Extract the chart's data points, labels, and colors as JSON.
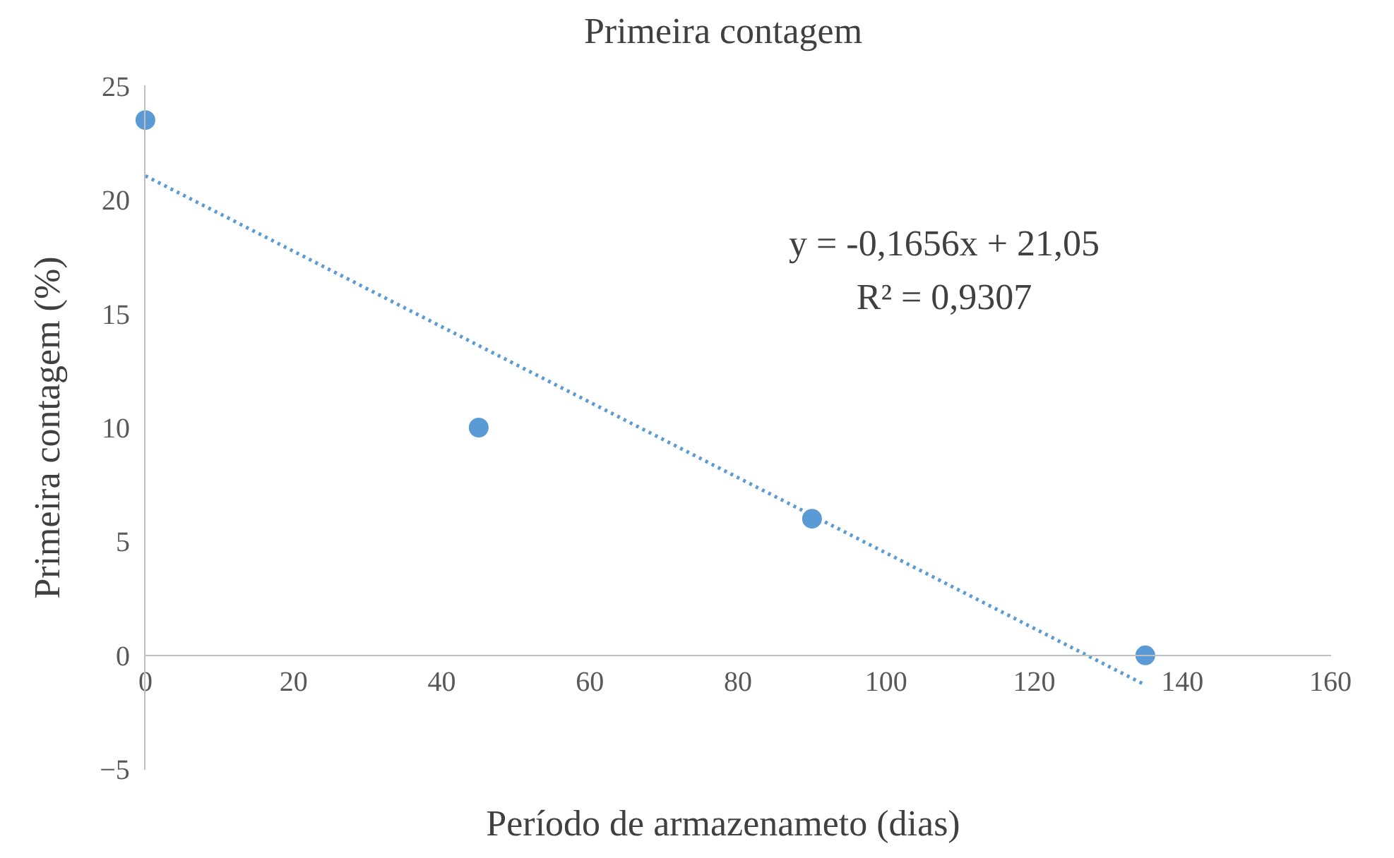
{
  "chart_data": {
    "type": "scatter",
    "title": "Primeira contagem",
    "xlabel": "Período de armazenameto (dias)",
    "ylabel": "Primeira contagem (%)",
    "x": [
      0,
      45,
      90,
      135
    ],
    "series": [
      {
        "color": "#5b9bd5",
        "values": [
          23.5,
          10,
          6,
          0
        ],
        "marker": "circle"
      },
      {
        "type": "line",
        "color": "#5b9bd5",
        "x": [
          0,
          135
        ],
        "values": [
          21.05,
          -1.3
        ],
        "line_style": "dotted"
      }
    ],
    "xlim": [
      0,
      160
    ],
    "xticks": [
      0,
      20,
      40,
      60,
      80,
      100,
      120,
      140,
      160
    ],
    "ylim": [
      -5,
      25
    ],
    "yticks": [
      -5,
      0,
      5,
      10,
      15,
      20,
      25
    ],
    "grid": false,
    "annotations": [
      "y = -0,1656x + 21,05",
      "R² = 0,9307"
    ]
  }
}
